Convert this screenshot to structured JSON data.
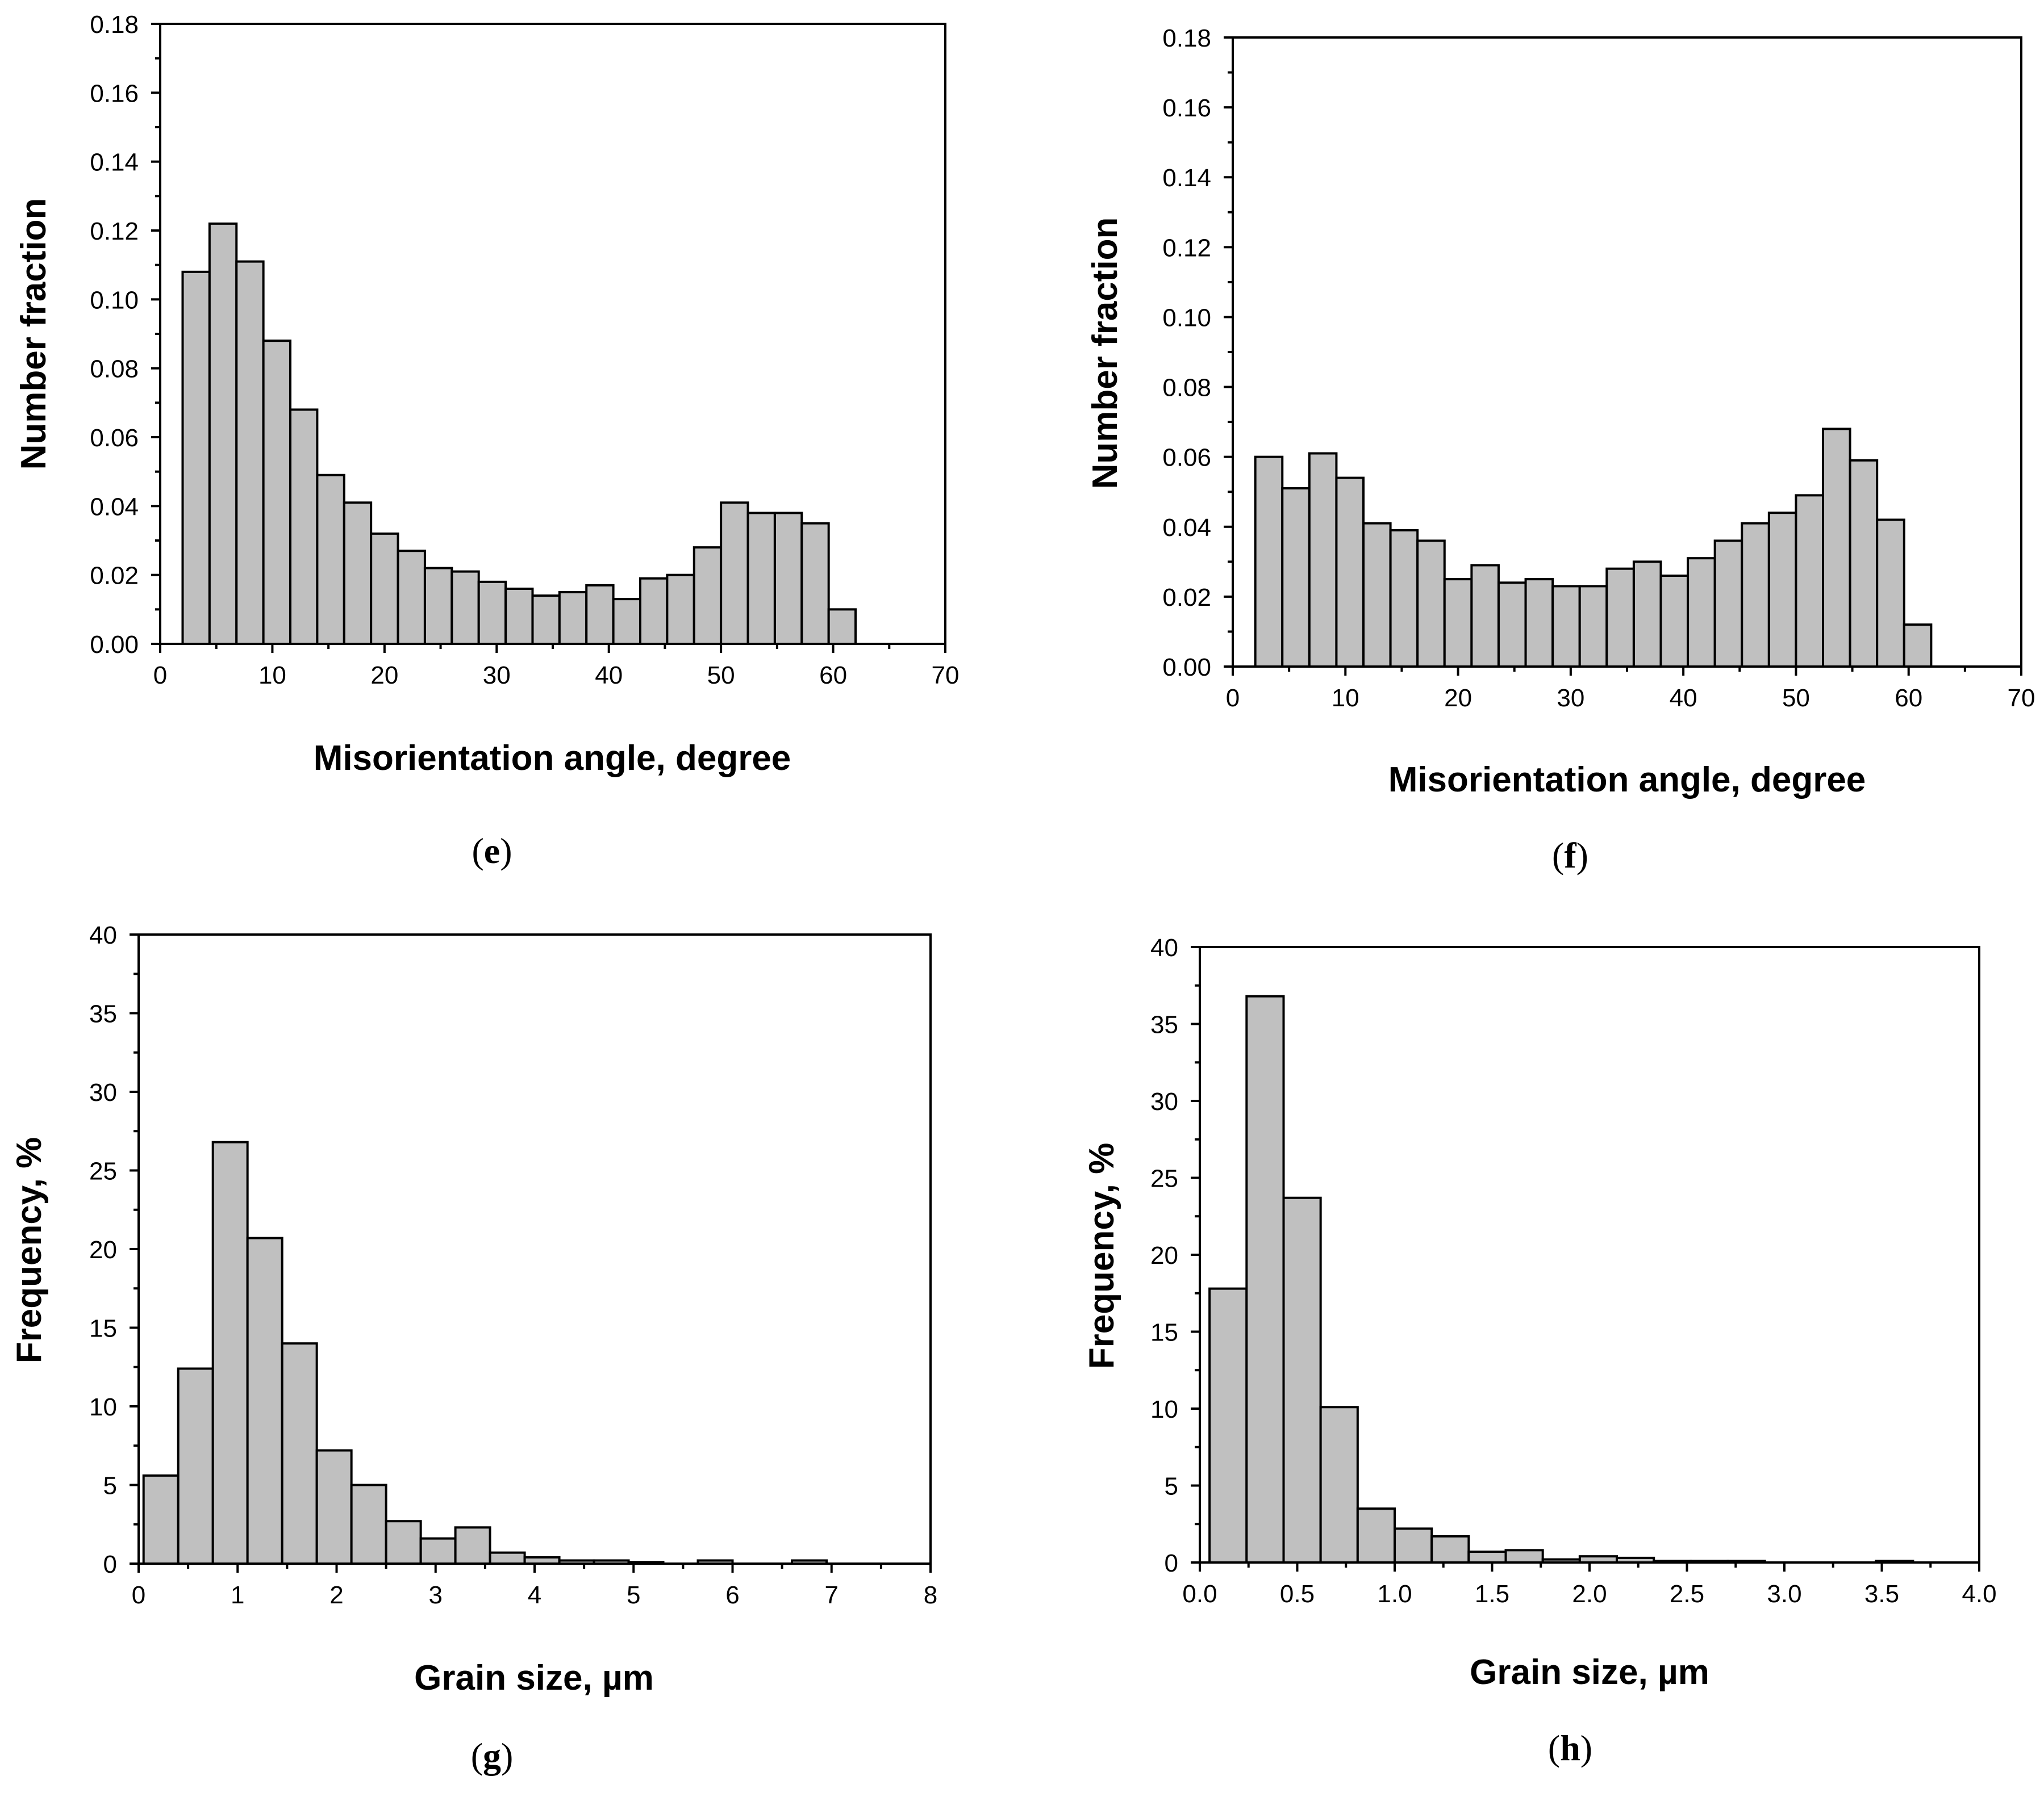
{
  "chart_data": [
    {
      "id": "e",
      "type": "bar",
      "caption": "e",
      "xlabel": "Misorientation angle, degree",
      "ylabel": "Number fraction",
      "xlim": [
        0,
        70
      ],
      "ylim": [
        0,
        0.18
      ],
      "xticks": [
        0,
        10,
        20,
        30,
        40,
        50,
        60,
        70
      ],
      "xtick_labels": [
        "0",
        "10",
        "20",
        "30",
        "40",
        "50",
        "60",
        "70"
      ],
      "yticks": [
        0,
        0.02,
        0.04,
        0.06,
        0.08,
        0.1,
        0.12,
        0.14,
        0.16,
        0.18
      ],
      "ytick_labels": [
        "0.00",
        "0.02",
        "0.04",
        "0.06",
        "0.08",
        "0.10",
        "0.12",
        "0.14",
        "0.16",
        "0.18"
      ],
      "bin_start": 2,
      "bin_width": 2.4,
      "values": [
        0.108,
        0.122,
        0.111,
        0.088,
        0.068,
        0.049,
        0.041,
        0.032,
        0.027,
        0.022,
        0.021,
        0.018,
        0.016,
        0.014,
        0.015,
        0.017,
        0.013,
        0.019,
        0.02,
        0.028,
        0.041,
        0.038,
        0.038,
        0.035,
        0.01
      ]
    },
    {
      "id": "f",
      "type": "bar",
      "caption": "f",
      "xlabel": "Misorientation angle, degree",
      "ylabel": "Number fraction",
      "xlim": [
        0,
        70
      ],
      "ylim": [
        0,
        0.18
      ],
      "xticks": [
        0,
        10,
        20,
        30,
        40,
        50,
        60,
        70
      ],
      "xtick_labels": [
        "0",
        "10",
        "20",
        "30",
        "40",
        "50",
        "60",
        "70"
      ],
      "yticks": [
        0,
        0.02,
        0.04,
        0.06,
        0.08,
        0.1,
        0.12,
        0.14,
        0.16,
        0.18
      ],
      "ytick_labels": [
        "0.00",
        "0.02",
        "0.04",
        "0.06",
        "0.08",
        "0.10",
        "0.12",
        "0.14",
        "0.16",
        "0.18"
      ],
      "bin_start": 2,
      "bin_width": 2.4,
      "values": [
        0.06,
        0.051,
        0.061,
        0.054,
        0.041,
        0.039,
        0.036,
        0.025,
        0.029,
        0.024,
        0.025,
        0.023,
        0.023,
        0.028,
        0.03,
        0.026,
        0.031,
        0.036,
        0.041,
        0.044,
        0.049,
        0.068,
        0.059,
        0.042,
        0.012
      ]
    },
    {
      "id": "g",
      "type": "bar",
      "caption": "g",
      "xlabel": "Grain size, µm",
      "ylabel": "Frequency, %",
      "xlim": [
        0,
        8
      ],
      "ylim": [
        0,
        40
      ],
      "xticks": [
        0,
        1,
        2,
        3,
        4,
        5,
        6,
        7,
        8
      ],
      "xtick_labels": [
        "0",
        "1",
        "2",
        "3",
        "4",
        "5",
        "6",
        "7",
        "8"
      ],
      "yticks": [
        0,
        5,
        10,
        15,
        20,
        25,
        30,
        35,
        40
      ],
      "ytick_labels": [
        "0",
        "5",
        "10",
        "15",
        "20",
        "25",
        "30",
        "35",
        "40"
      ],
      "bin_start": 0.05,
      "bin_width": 0.35,
      "values": [
        5.6,
        12.4,
        26.8,
        20.7,
        14.0,
        7.2,
        5.0,
        2.7,
        1.6,
        2.3,
        0.7,
        0.4,
        0.2,
        0.2,
        0.1,
        0.0,
        0.2,
        0.0,
        0.0,
        0.0,
        0.0,
        0.0,
        0.0,
        0.0,
        0.0,
        0.0,
        0.0,
        0.0,
        0.0,
        0.0,
        0.0,
        0.0,
        0.0,
        0.0,
        0.0,
        0.0,
        0.0,
        0.0,
        0.0,
        0.0,
        0.0,
        0.0
      ],
      "extra_bars": [
        {
          "x": 6.6,
          "value": 0.2
        }
      ]
    },
    {
      "id": "h",
      "type": "bar",
      "caption": "h",
      "xlabel": "Grain size, µm",
      "ylabel": "Frequency, %",
      "xlim": [
        0,
        4
      ],
      "ylim": [
        0,
        40
      ],
      "xticks": [
        0,
        0.5,
        1.0,
        1.5,
        2.0,
        2.5,
        3.0,
        3.5,
        4.0
      ],
      "xtick_labels": [
        "0.0",
        "0.5",
        "1.0",
        "1.5",
        "2.0",
        "2.5",
        "3.0",
        "3.5",
        "4.0"
      ],
      "yticks": [
        0,
        5,
        10,
        15,
        20,
        25,
        30,
        35,
        40
      ],
      "ytick_labels": [
        "0",
        "5",
        "10",
        "15",
        "20",
        "25",
        "30",
        "35",
        "40"
      ],
      "bin_start": 0.05,
      "bin_width": 0.19,
      "values": [
        17.8,
        36.8,
        23.7,
        10.1,
        3.5,
        2.2,
        1.7,
        0.7,
        0.8,
        0.2,
        0.4,
        0.3,
        0.1,
        0.1,
        0.1,
        0.0,
        0.0,
        0.0,
        0.1
      ]
    }
  ]
}
